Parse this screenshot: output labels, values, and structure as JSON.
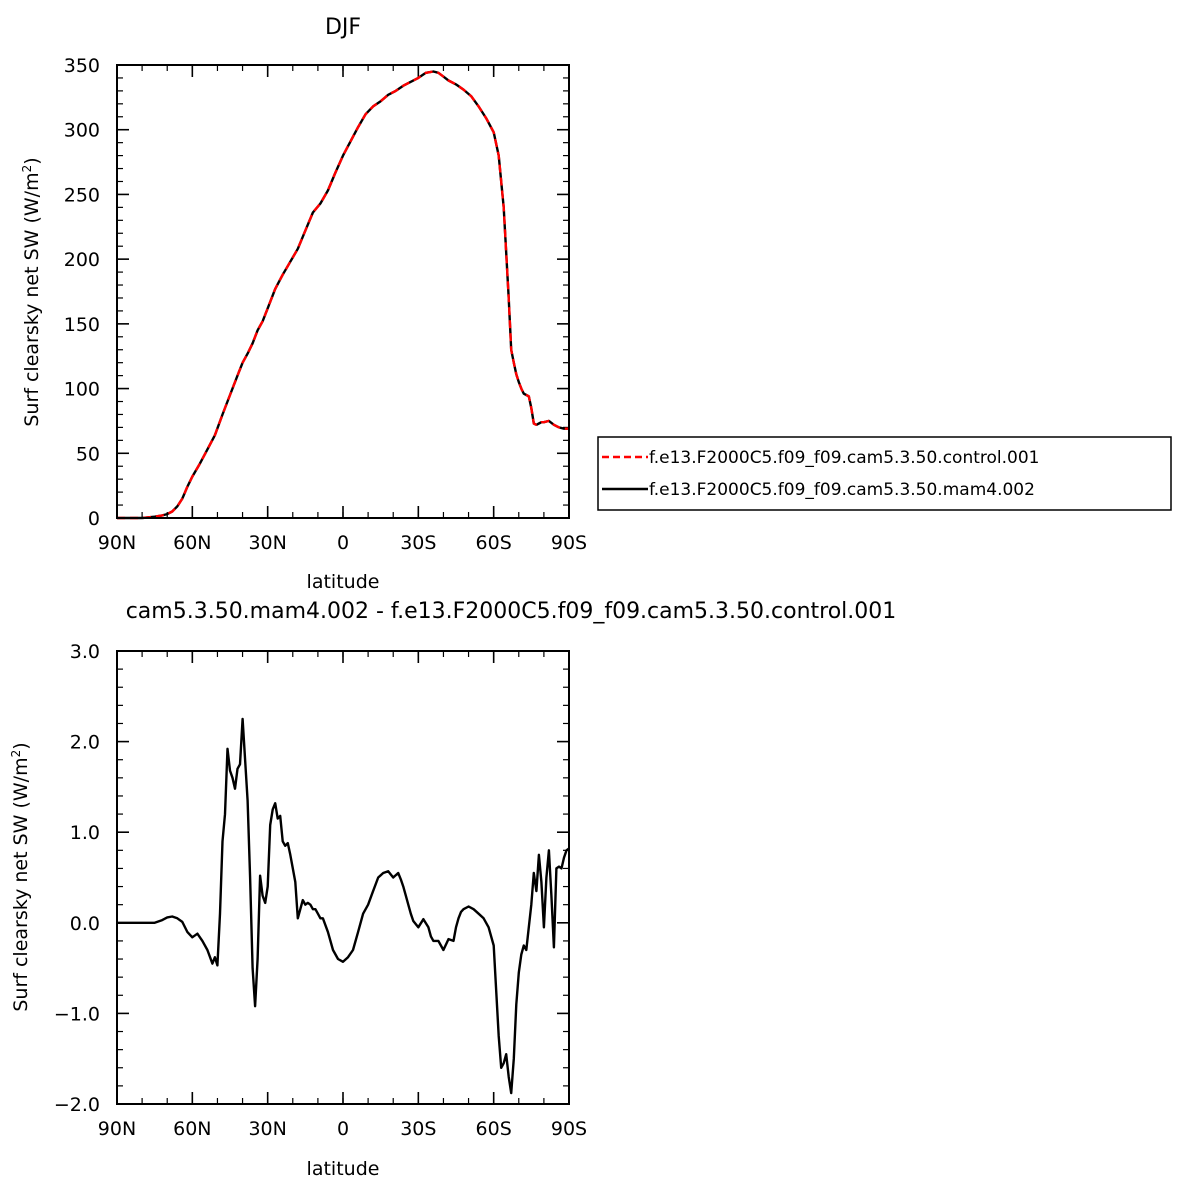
{
  "chart_data": [
    {
      "type": "line",
      "title": "DJF",
      "xlabel": "latitude",
      "ylabel": "Surf clearsky net SW (W/m",
      "ylabel_sup": "2",
      "ylabel_close": ")",
      "xlim": [
        90,
        -90
      ],
      "ylim": [
        0,
        350
      ],
      "x_ticks": [
        90,
        60,
        30,
        0,
        -30,
        -60,
        -90
      ],
      "x_tick_labels": [
        "90N",
        "60N",
        "30N",
        "0",
        "30S",
        "60S",
        "90S"
      ],
      "y_ticks": [
        0,
        50,
        100,
        150,
        200,
        250,
        300,
        350
      ],
      "y_tick_labels": [
        "0",
        "50",
        "100",
        "150",
        "200",
        "250",
        "300",
        "350"
      ],
      "legend_position": "right",
      "series": [
        {
          "name": "f.e13.F2000C5.f09_f09.cam5.3.50.control.001",
          "color": "#ff0000",
          "dash": "dashed",
          "x": [
            90,
            80,
            75,
            72,
            70,
            68,
            66,
            64,
            62,
            60,
            57,
            54,
            51,
            48,
            45,
            42,
            40,
            38,
            36,
            34,
            32,
            30,
            27,
            24,
            21,
            18,
            15,
            12,
            9,
            6,
            3,
            0,
            -3,
            -6,
            -9,
            -12,
            -15,
            -18,
            -21,
            -24,
            -27,
            -30,
            -33,
            -36,
            -38,
            -40,
            -42,
            -45,
            -48,
            -51,
            -54,
            -57,
            -60,
            -62,
            -64,
            -65,
            -66,
            -67,
            -68,
            -69,
            -70,
            -71,
            -72,
            -73,
            -74,
            -75,
            -76,
            -77,
            -78,
            -79,
            -80,
            -82,
            -84,
            -86,
            -88,
            -90
          ],
          "y": [
            0,
            0,
            1,
            2,
            3,
            5,
            9,
            15,
            24,
            32,
            42,
            53,
            64,
            80,
            95,
            110,
            120,
            127,
            135,
            145,
            152,
            162,
            177,
            188,
            198,
            208,
            222,
            236,
            243,
            253,
            267,
            280,
            291,
            302,
            312,
            318,
            322,
            327,
            330,
            334,
            337,
            340,
            344,
            345,
            344,
            341,
            338,
            335,
            331,
            326,
            318,
            309,
            298,
            280,
            240,
            205,
            170,
            130,
            120,
            111,
            105,
            100,
            96,
            95,
            94,
            85,
            73,
            72,
            73,
            74,
            74,
            75,
            72,
            70,
            69,
            69
          ]
        },
        {
          "name": "f.e13.F2000C5.f09_f09.cam5.3.50.mam4.002",
          "color": "#000000",
          "dash": "solid",
          "x": [
            90,
            80,
            75,
            72,
            70,
            68,
            66,
            64,
            62,
            60,
            57,
            54,
            51,
            48,
            45,
            42,
            40,
            38,
            36,
            34,
            32,
            30,
            27,
            24,
            21,
            18,
            15,
            12,
            9,
            6,
            3,
            0,
            -3,
            -6,
            -9,
            -12,
            -15,
            -18,
            -21,
            -24,
            -27,
            -30,
            -33,
            -36,
            -38,
            -40,
            -42,
            -45,
            -48,
            -51,
            -54,
            -57,
            -60,
            -62,
            -64,
            -65,
            -66,
            -67,
            -68,
            -69,
            -70,
            -71,
            -72,
            -73,
            -74,
            -75,
            -76,
            -77,
            -78,
            -79,
            -80,
            -82,
            -84,
            -86,
            -88,
            -90
          ],
          "y": [
            0,
            0,
            1,
            2,
            3,
            5,
            9,
            15,
            24,
            32,
            42,
            53,
            64,
            80,
            95,
            110,
            120,
            127,
            135,
            145,
            152,
            162,
            177,
            188,
            198,
            208,
            222,
            236,
            243,
            253,
            267,
            280,
            291,
            302,
            312,
            318,
            322,
            327,
            330,
            334,
            337,
            340,
            344,
            345,
            344,
            341,
            338,
            335,
            331,
            326,
            318,
            309,
            298,
            280,
            240,
            205,
            170,
            130,
            120,
            111,
            105,
            100,
            96,
            95,
            94,
            85,
            73,
            72,
            73,
            74,
            74,
            75,
            72,
            70,
            69,
            69
          ]
        }
      ]
    },
    {
      "type": "line",
      "title": "cam5.3.50.mam4.002 - f.e13.F2000C5.f09_f09.cam5.3.50.control.001",
      "xlabel": "latitude",
      "ylabel": "Surf clearsky net SW (W/m",
      "ylabel_sup": "2",
      "ylabel_close": ")",
      "xlim": [
        90,
        -90
      ],
      "ylim": [
        -2.0,
        3.0
      ],
      "x_ticks": [
        90,
        60,
        30,
        0,
        -30,
        -60,
        -90
      ],
      "x_tick_labels": [
        "90N",
        "60N",
        "30N",
        "0",
        "30S",
        "60S",
        "90S"
      ],
      "y_ticks": [
        -2.0,
        -1.0,
        0.0,
        1.0,
        2.0,
        3.0
      ],
      "y_tick_labels": [
        "−2.0",
        "−1.0",
        "0.0",
        "1.0",
        "2.0",
        "3.0"
      ],
      "series": [
        {
          "color": "#000000",
          "x": [
            90,
            75,
            72,
            70,
            68,
            66,
            64,
            62,
            60,
            58,
            56,
            54,
            52,
            51,
            50,
            49,
            48,
            47,
            46,
            45,
            44,
            43,
            42,
            41,
            40,
            39,
            38,
            37,
            36,
            35,
            34,
            33,
            32,
            31,
            30,
            29,
            28,
            27,
            26,
            25,
            24,
            23,
            22,
            21,
            20,
            19,
            18,
            17,
            16,
            15,
            14,
            13,
            12,
            11,
            10,
            9,
            8,
            6,
            4,
            2,
            0,
            -2,
            -4,
            -6,
            -8,
            -10,
            -12,
            -14,
            -16,
            -18,
            -20,
            -22,
            -23,
            -24,
            -25,
            -26,
            -27,
            -28,
            -30,
            -32,
            -34,
            -35,
            -36,
            -38,
            -40,
            -42,
            -44,
            -45,
            -46,
            -47,
            -48,
            -50,
            -52,
            -54,
            -56,
            -58,
            -60,
            -61,
            -62,
            -63,
            -64,
            -65,
            -66,
            -67,
            -68,
            -69,
            -70,
            -71,
            -72,
            -73,
            -74,
            -75,
            -76,
            -77,
            -78,
            -79,
            -80,
            -81,
            -82,
            -83,
            -84,
            -85,
            -86,
            -87,
            -88,
            -89,
            -90
          ],
          "y": [
            0,
            0,
            0.03,
            0.06,
            0.07,
            0.05,
            0.01,
            -0.1,
            -0.16,
            -0.12,
            -0.2,
            -0.3,
            -0.45,
            -0.38,
            -0.47,
            0.1,
            0.9,
            1.2,
            1.92,
            1.68,
            1.6,
            1.48,
            1.7,
            1.75,
            2.25,
            1.8,
            1.35,
            0.5,
            -0.5,
            -0.92,
            -0.4,
            0.52,
            0.3,
            0.22,
            0.4,
            1.08,
            1.25,
            1.32,
            1.15,
            1.18,
            0.9,
            0.85,
            0.88,
            0.75,
            0.6,
            0.45,
            0.05,
            0.15,
            0.25,
            0.2,
            0.22,
            0.2,
            0.15,
            0.15,
            0.1,
            0.05,
            0.05,
            -0.1,
            -0.3,
            -0.4,
            -0.43,
            -0.38,
            -0.3,
            -0.1,
            0.1,
            0.2,
            0.35,
            0.5,
            0.55,
            0.57,
            0.5,
            0.55,
            0.48,
            0.4,
            0.3,
            0.2,
            0.1,
            0.02,
            -0.05,
            0.04,
            -0.05,
            -0.15,
            -0.2,
            -0.2,
            -0.3,
            -0.18,
            -0.2,
            -0.05,
            0.05,
            0.12,
            0.15,
            0.18,
            0.15,
            0.1,
            0.05,
            -0.05,
            -0.25,
            -0.75,
            -1.25,
            -1.6,
            -1.55,
            -1.45,
            -1.7,
            -1.88,
            -1.5,
            -0.9,
            -0.55,
            -0.35,
            -0.25,
            -0.3,
            -0.05,
            0.2,
            0.55,
            0.35,
            0.75,
            0.45,
            -0.05,
            0.5,
            0.8,
            0.3,
            -0.27,
            0.6,
            0.62,
            0.6,
            0.72,
            0.8,
            0.82
          ]
        }
      ]
    }
  ]
}
